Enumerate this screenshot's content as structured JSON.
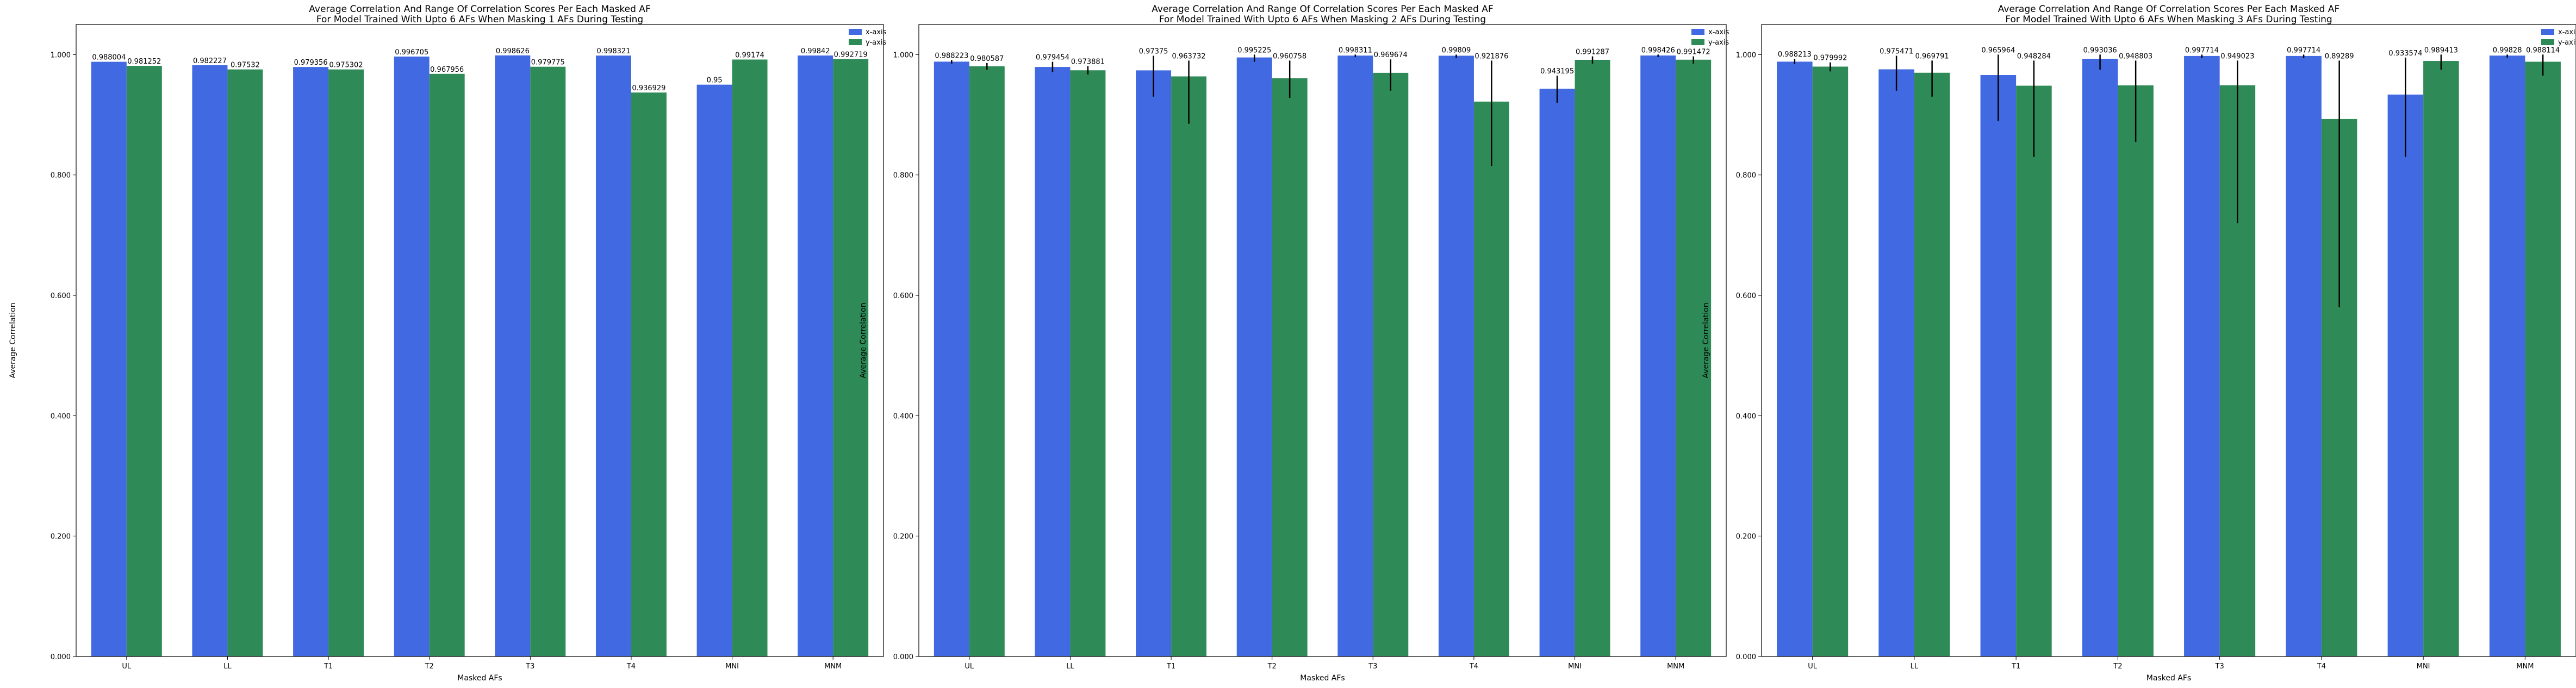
{
  "colors": {
    "x_axis": "#4169e1",
    "y_axis": "#2e8b57",
    "error_bar": "#000000"
  },
  "chart_data": [
    {
      "type": "bar",
      "title": "Average Correlation And Range Of Correlation Scores Per Each Masked AF\nFor Model Trained With Upto 6 AFs When Masking 1 AFs During Testing",
      "xlabel": "Masked AFs",
      "ylabel": "Average Correlation",
      "categories": [
        "UL",
        "LL",
        "T1",
        "T2",
        "T3",
        "T4",
        "MNI",
        "MNM"
      ],
      "ylim": [
        0,
        1.05
      ],
      "yticks": [
        "0.000",
        "0.200",
        "0.400",
        "0.600",
        "0.800",
        "1.000"
      ],
      "legend": "top-right",
      "series": [
        {
          "name": "x-axis",
          "values": [
            0.988004,
            0.982227,
            0.979356,
            0.996705,
            0.998626,
            0.998321,
            0.95,
            0.99842
          ],
          "labels": [
            "0.988004",
            "0.982227",
            "0.979356",
            "0.996705",
            "0.998626",
            "0.998321",
            "0.95",
            "0.99842"
          ],
          "errors": [
            null,
            null,
            null,
            null,
            null,
            null,
            null,
            null
          ]
        },
        {
          "name": "y-axis",
          "values": [
            0.981252,
            0.97532,
            0.975302,
            0.967956,
            0.979775,
            0.936929,
            0.99174,
            0.992719
          ],
          "labels": [
            "0.981252",
            "0.97532",
            "0.975302",
            "0.967956",
            "0.979775",
            "0.936929",
            "0.99174",
            "0.992719"
          ],
          "errors": [
            null,
            null,
            null,
            null,
            null,
            null,
            null,
            null
          ]
        }
      ]
    },
    {
      "type": "bar",
      "title": "Average Correlation And Range Of Correlation Scores Per Each Masked AF\nFor Model Trained With Upto 6 AFs When Masking 2 AFs During Testing",
      "xlabel": "Masked AFs",
      "ylabel": "Average Correlation",
      "categories": [
        "UL",
        "LL",
        "T1",
        "T2",
        "T3",
        "T4",
        "MNI",
        "MNM"
      ],
      "ylim": [
        0,
        1.05
      ],
      "yticks": [
        "0.000",
        "0.200",
        "0.400",
        "0.600",
        "0.800",
        "1.000"
      ],
      "legend": "top-right",
      "series": [
        {
          "name": "x-axis",
          "values": [
            0.988223,
            0.979454,
            0.97375,
            0.995225,
            0.998311,
            0.99809,
            0.943195,
            0.998426
          ],
          "labels": [
            "0.988223",
            "0.979454",
            "0.97375",
            "0.995225",
            "0.998311",
            "0.99809",
            "0.943195",
            "0.998426"
          ],
          "errors": [
            [
              0.985,
              0.991
            ],
            [
              0.971,
              0.988
            ],
            [
              0.93,
              0.998
            ],
            [
              0.988,
              1.0
            ],
            [
              0.996,
              1.0
            ],
            [
              0.994,
              1.0
            ],
            [
              0.92,
              0.965
            ],
            [
              0.996,
              1.0
            ]
          ]
        },
        {
          "name": "y-axis",
          "values": [
            0.980587,
            0.973881,
            0.963732,
            0.960758,
            0.969674,
            0.921876,
            0.991287,
            0.991472
          ],
          "labels": [
            "0.980587",
            "0.973881",
            "0.963732",
            "0.960758",
            "0.969674",
            "0.921876",
            "0.991287",
            "0.991472"
          ],
          "errors": [
            [
              0.975,
              0.986
            ],
            [
              0.967,
              0.981
            ],
            [
              0.885,
              0.99
            ],
            [
              0.928,
              0.99
            ],
            [
              0.94,
              0.992
            ],
            [
              0.815,
              0.99
            ],
            [
              0.985,
              0.997
            ],
            [
              0.985,
              0.997
            ]
          ]
        }
      ]
    },
    {
      "type": "bar",
      "title": "Average Correlation And Range Of Correlation Scores Per Each Masked AF\nFor Model Trained With Upto 6 AFs When Masking 3 AFs During Testing",
      "xlabel": "Masked AFs",
      "ylabel": "Average Correlation",
      "categories": [
        "UL",
        "LL",
        "T1",
        "T2",
        "T3",
        "T4",
        "MNI",
        "MNM"
      ],
      "ylim": [
        0,
        1.05
      ],
      "yticks": [
        "0.000",
        "0.200",
        "0.400",
        "0.600",
        "0.800",
        "1.000"
      ],
      "legend": "top-right",
      "series": [
        {
          "name": "x-axis",
          "values": [
            0.988213,
            0.975471,
            0.965964,
            0.993036,
            0.997714,
            0.997714,
            0.933574,
            0.99828
          ],
          "labels": [
            "0.988213",
            "0.975471",
            "0.965964",
            "0.993036",
            "0.997714",
            "0.997714",
            "0.933574",
            "0.99828"
          ],
          "errors": [
            [
              0.984,
              0.993
            ],
            [
              0.94,
              0.998
            ],
            [
              0.89,
              1.0
            ],
            [
              0.975,
              1.0
            ],
            [
              0.994,
              1.0
            ],
            [
              0.994,
              1.0
            ],
            [
              0.83,
              0.995
            ],
            [
              0.995,
              1.0
            ]
          ]
        },
        {
          "name": "y-axis",
          "values": [
            0.979992,
            0.969791,
            0.948284,
            0.948803,
            0.949023,
            0.89289,
            0.989413,
            0.988114
          ],
          "labels": [
            "0.979992",
            "0.969791",
            "0.948284",
            "0.948803",
            "0.949023",
            "0.89289",
            "0.989413",
            "0.988114"
          ],
          "errors": [
            [
              0.972,
              0.987
            ],
            [
              0.93,
              0.99
            ],
            [
              0.83,
              0.99
            ],
            [
              0.855,
              0.99
            ],
            [
              0.72,
              0.99
            ],
            [
              0.58,
              0.99
            ],
            [
              0.975,
              1.0
            ],
            [
              0.965,
              1.0
            ]
          ]
        }
      ]
    }
  ]
}
